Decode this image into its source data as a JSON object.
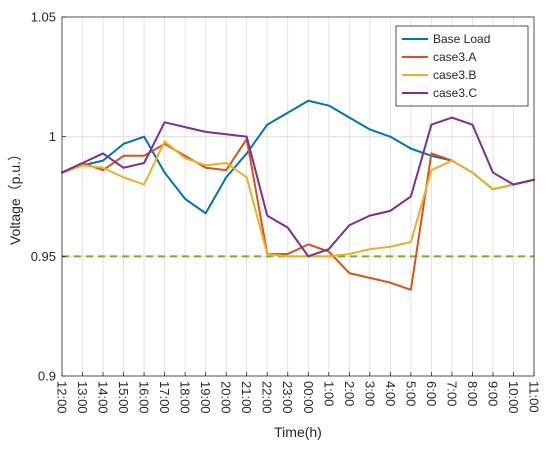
{
  "chart_data": {
    "type": "line",
    "xlabel": "Time(h)",
    "ylabel": "Voltage（p.u.）",
    "categories": [
      "12:00",
      "13:00",
      "14:00",
      "15:00",
      "16:00",
      "17:00",
      "18:00",
      "19:00",
      "20:00",
      "21:00",
      "22:00",
      "23:00",
      "00:00",
      "1:00",
      "2:00",
      "3:00",
      "4:00",
      "5:00",
      "6:00",
      "7:00",
      "8:00",
      "9:00",
      "10:00",
      "11:00"
    ],
    "ylim": [
      0.9,
      1.05
    ],
    "yticks": [
      0.9,
      0.95,
      1,
      1.05
    ],
    "ytick_labels": [
      "0.9",
      "0.95",
      "1",
      "1.05"
    ],
    "grid": true,
    "legend_position": "top-right",
    "reference_line": {
      "value": 0.95,
      "color": "#77ac30",
      "style": "dashed"
    },
    "series": [
      {
        "name": "Base Load",
        "color": "#0072bd",
        "x": [
          "12:00",
          "13:00",
          "14:00",
          "15:00",
          "16:00",
          "17:00",
          "18:00",
          "19:00",
          "20:00",
          "21:00",
          "22:00",
          "23:00",
          "00:00",
          "1:00",
          "2:00",
          "3:00",
          "4:00",
          "5:00",
          "6:00",
          "7:00",
          "8:00",
          "9:00",
          "10:00",
          "11:00"
        ],
        "values": [
          0.985,
          0.988,
          0.99,
          0.997,
          1.0,
          0.985,
          0.974,
          0.968,
          0.983,
          0.993,
          1.005,
          1.01,
          1.015,
          1.013,
          1.008,
          1.003,
          1.0,
          0.995,
          0.992,
          0.99,
          0.985,
          0.978,
          0.98,
          0.982
        ]
      },
      {
        "name": "case3.A",
        "color": "#d95319",
        "x": [
          "12:00",
          "13:00",
          "14:00",
          "15:00",
          "16:00",
          "17:00",
          "18:00",
          "19:00",
          "20:00",
          "21:00",
          "22:00",
          "23:00",
          "00:00",
          "1:00",
          "2:00",
          "3:00",
          "4:00",
          "5:00",
          "6:00",
          "7:00"
        ],
        "values": [
          0.985,
          0.989,
          0.986,
          0.992,
          0.992,
          0.997,
          0.992,
          0.987,
          0.986,
          0.999,
          0.951,
          0.951,
          0.955,
          0.952,
          0.943,
          0.941,
          0.939,
          0.936,
          0.993,
          0.99
        ]
      },
      {
        "name": "case3.B",
        "color": "#edb120",
        "x": [
          "12:00",
          "13:00",
          "14:00",
          "15:00",
          "16:00",
          "17:00",
          "18:00",
          "19:00",
          "20:00",
          "21:00",
          "22:00",
          "23:00",
          "00:00",
          "1:00",
          "2:00",
          "3:00",
          "4:00",
          "5:00",
          "6:00",
          "7:00",
          "8:00",
          "9:00",
          "10:00"
        ],
        "values": [
          0.985,
          0.988,
          0.987,
          0.983,
          0.98,
          0.998,
          0.991,
          0.988,
          0.989,
          0.983,
          0.951,
          0.95,
          0.95,
          0.95,
          0.951,
          0.953,
          0.954,
          0.956,
          0.986,
          0.99,
          0.985,
          0.978,
          0.98
        ]
      },
      {
        "name": "case3.C",
        "color": "#7e2f8e",
        "x": [
          "12:00",
          "13:00",
          "14:00",
          "15:00",
          "16:00",
          "17:00",
          "18:00",
          "19:00",
          "20:00",
          "21:00",
          "22:00",
          "23:00",
          "00:00",
          "1:00",
          "2:00",
          "3:00",
          "4:00",
          "5:00",
          "6:00",
          "7:00",
          "8:00",
          "9:00",
          "10:00",
          "11:00"
        ],
        "values": [
          0.985,
          0.989,
          0.993,
          0.987,
          0.989,
          1.006,
          1.004,
          1.002,
          1.001,
          1.0,
          0.967,
          0.962,
          0.95,
          0.953,
          0.963,
          0.967,
          0.969,
          0.975,
          1.005,
          1.008,
          1.005,
          0.985,
          0.98,
          0.982
        ]
      }
    ]
  }
}
